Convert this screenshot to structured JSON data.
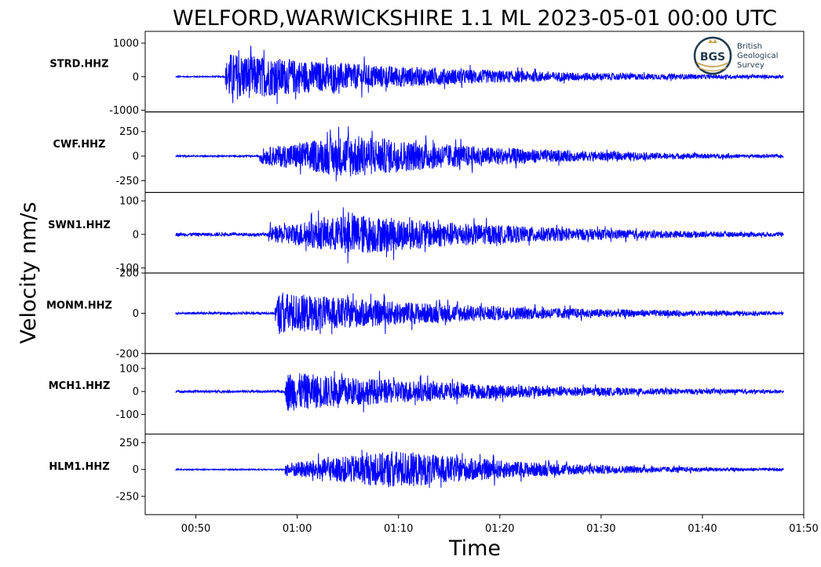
{
  "chart_data": {
    "type": "line",
    "title": "WELFORD,WARWICKSHIRE 1.1 ML   2023-05-01 00:00 UTC",
    "xlabel": "Time",
    "ylabel": "Velocity nm/s",
    "x_ticks": [
      "00:50",
      "01:00",
      "01:10",
      "01:20",
      "01:30",
      "01:40",
      "01:50"
    ],
    "x_range_minutes": [
      "00:45",
      "01:50"
    ],
    "line_color": "#0000ff",
    "logo": {
      "text_lines": [
        "British",
        "Geological",
        "Survey"
      ],
      "mark": "BGS"
    },
    "panels": [
      {
        "station": "STRD.HHZ",
        "yticks": [
          "1000",
          "0",
          "-1000"
        ],
        "ytick_values": [
          1000,
          0,
          -1000
        ],
        "ylim": [
          -1050,
          1350
        ],
        "onset_min": 52.9,
        "peak_min": 53.2,
        "peak_amp": 1300,
        "noise": 18,
        "decay": 20
      },
      {
        "station": "CWF.HHZ",
        "yticks": [
          "250",
          "0",
          "-250"
        ],
        "ytick_values": [
          250,
          0,
          -250
        ],
        "ylim": [
          -370,
          450
        ],
        "onset_min": 56.3,
        "peak_min": 65.3,
        "peak_amp": 400,
        "noise": 8,
        "decay": 16
      },
      {
        "station": "SWN1.HHZ",
        "yticks": [
          "100",
          "0",
          "-100"
        ],
        "ytick_values": [
          100,
          0,
          -100
        ],
        "ylim": [
          -115,
          125
        ],
        "onset_min": 57.2,
        "peak_min": 65.8,
        "peak_amp": 110,
        "noise": 5,
        "decay": 18
      },
      {
        "station": "MONM.HHZ",
        "yticks": [
          "200",
          "0",
          "-200"
        ],
        "ytick_values": [
          200,
          0,
          -200
        ],
        "ylim": [
          -200,
          200
        ],
        "onset_min": 57.8,
        "peak_min": 58.2,
        "peak_amp": 190,
        "noise": 6,
        "decay": 20
      },
      {
        "station": "MCH1.HHZ",
        "yticks": [
          "100",
          "0",
          "-100"
        ],
        "ytick_values": [
          100,
          0,
          -100
        ],
        "ylim": [
          -185,
          165
        ],
        "onset_min": 58.8,
        "peak_min": 59.0,
        "peak_amp": 155,
        "noise": 5,
        "decay": 20
      },
      {
        "station": "HLM1.HHZ",
        "yticks": [
          "250",
          "0",
          "-250"
        ],
        "ytick_values": [
          250,
          0,
          -250
        ],
        "ylim": [
          -420,
          330
        ],
        "onset_min": 58.8,
        "peak_min": 70.0,
        "peak_amp": 320,
        "noise": 5,
        "decay": 14
      }
    ]
  }
}
